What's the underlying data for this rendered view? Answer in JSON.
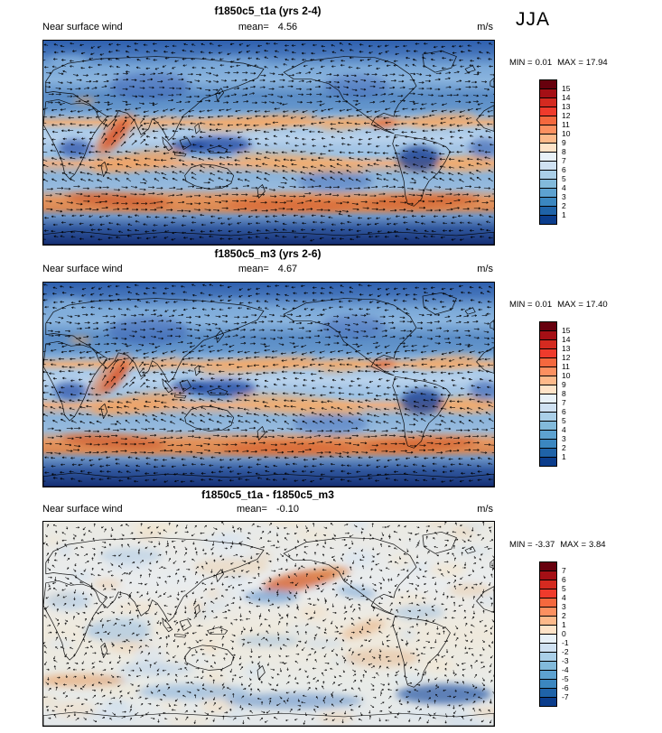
{
  "season_label": "JJA",
  "palette": [
    "#67000d",
    "#a50f15",
    "#d42a20",
    "#ef3b2c",
    "#f4683e",
    "#fc9060",
    "#fdb98a",
    "#fee3c8",
    "#e8f1f8",
    "#cfe1f2",
    "#aacfe8",
    "#82badb",
    "#5da2d0",
    "#3b87c0",
    "#1f63a8",
    "#0b3d8c"
  ],
  "panels": [
    {
      "title": "f1850c5_t1a (yrs 2-4)",
      "variable": "Near surface wind",
      "mean_label": "mean=",
      "mean": "4.56",
      "units": "m/s",
      "min_label": "MIN =",
      "min": "0.01",
      "max_label": "MAX =",
      "max": "17.94",
      "map_kind": "full",
      "colorbar_ticks": [
        "15",
        "14",
        "13",
        "12",
        "11",
        "10",
        "9",
        "8",
        "7",
        "6",
        "5",
        "4",
        "3",
        "2",
        "1"
      ]
    },
    {
      "title": "f1850c5_m3 (yrs 2-6)",
      "variable": "Near surface wind",
      "mean_label": "mean=",
      "mean": "4.67",
      "units": "m/s",
      "min_label": "MIN =",
      "min": "0.01",
      "max_label": "MAX =",
      "max": "17.40",
      "map_kind": "full",
      "colorbar_ticks": [
        "15",
        "14",
        "13",
        "12",
        "11",
        "10",
        "9",
        "8",
        "7",
        "6",
        "5",
        "4",
        "3",
        "2",
        "1"
      ]
    },
    {
      "title": "f1850c5_t1a - f1850c5_m3",
      "variable": "Near surface wind",
      "mean_label": "mean=",
      "mean": "-0.10",
      "units": "m/s",
      "min_label": "MIN =",
      "min": "-3.37",
      "max_label": "MAX =",
      "max": "3.84",
      "map_kind": "diff",
      "colorbar_ticks": [
        "7",
        "6",
        "5",
        "4",
        "3",
        "2",
        "1",
        "0",
        "-1",
        "-2",
        "-3",
        "-4",
        "-5",
        "-6",
        "-7"
      ]
    }
  ],
  "chart_data": [
    {
      "type": "heatmap",
      "panel": "top",
      "title": "f1850c5_t1a (yrs 2-4)",
      "variable": "Near surface wind",
      "season": "JJA",
      "units": "m/s",
      "statistics": {
        "mean": 4.56,
        "min": 0.01,
        "max": 17.94
      },
      "contour_levels": [
        1,
        2,
        3,
        4,
        5,
        6,
        7,
        8,
        9,
        10,
        11,
        12,
        13,
        14,
        15
      ],
      "colormap": "blue-to-red diverging, 16 classes",
      "projection": "global cylindrical equidistant, lon 0-360",
      "overlay": "wind vector arrows",
      "legend_position": "right"
    },
    {
      "type": "heatmap",
      "panel": "middle",
      "title": "f1850c5_m3 (yrs 2-6)",
      "variable": "Near surface wind",
      "season": "JJA",
      "units": "m/s",
      "statistics": {
        "mean": 4.67,
        "min": 0.01,
        "max": 17.4
      },
      "contour_levels": [
        1,
        2,
        3,
        4,
        5,
        6,
        7,
        8,
        9,
        10,
        11,
        12,
        13,
        14,
        15
      ],
      "colormap": "blue-to-red diverging, 16 classes",
      "projection": "global cylindrical equidistant, lon 0-360",
      "overlay": "wind vector arrows",
      "legend_position": "right"
    },
    {
      "type": "heatmap",
      "panel": "bottom",
      "title": "f1850c5_t1a - f1850c5_m3",
      "variable": "Near surface wind difference",
      "season": "JJA",
      "units": "m/s",
      "statistics": {
        "mean": -0.1,
        "min": -3.37,
        "max": 3.84
      },
      "contour_levels": [
        -7,
        -6,
        -5,
        -4,
        -3,
        -2,
        -1,
        0,
        1,
        2,
        3,
        4,
        5,
        6,
        7
      ],
      "colormap": "blue-to-red diverging, 16 classes",
      "projection": "global cylindrical equidistant, lon 0-360",
      "overlay": "difference wind vector arrows",
      "legend_position": "right"
    }
  ]
}
